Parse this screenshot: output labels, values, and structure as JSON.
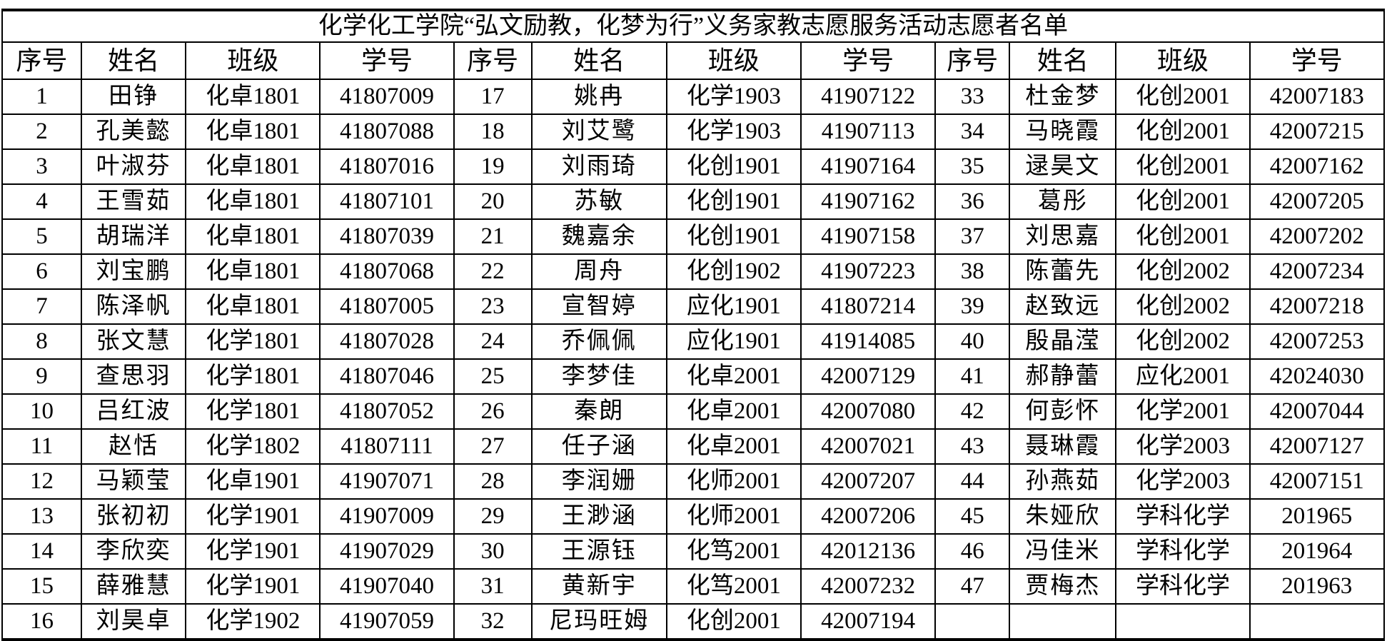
{
  "title": "化学化工学院“弘文励教，化梦为行”义务家教志愿服务活动志愿者名单",
  "headers": [
    "序号",
    "姓名",
    "班级",
    "学号"
  ],
  "volunteers": [
    {
      "no": "1",
      "name": "田铮",
      "class": "化卓1801",
      "id": "41807009"
    },
    {
      "no": "2",
      "name": "孔美懿",
      "class": "化卓1801",
      "id": "41807088"
    },
    {
      "no": "3",
      "name": "叶淑芬",
      "class": "化卓1801",
      "id": "41807016"
    },
    {
      "no": "4",
      "name": "王雪茹",
      "class": "化卓1801",
      "id": "41807101"
    },
    {
      "no": "5",
      "name": "胡瑞洋",
      "class": "化卓1801",
      "id": "41807039"
    },
    {
      "no": "6",
      "name": "刘宝鹏",
      "class": "化卓1801",
      "id": "41807068"
    },
    {
      "no": "7",
      "name": "陈泽帆",
      "class": "化卓1801",
      "id": "41807005"
    },
    {
      "no": "8",
      "name": "张文慧",
      "class": "化学1801",
      "id": "41807028"
    },
    {
      "no": "9",
      "name": "查思羽",
      "class": "化学1801",
      "id": "41807046"
    },
    {
      "no": "10",
      "name": "吕红波",
      "class": "化学1801",
      "id": "41807052"
    },
    {
      "no": "11",
      "name": "赵恬",
      "class": "化学1802",
      "id": "41807111"
    },
    {
      "no": "12",
      "name": "马颖莹",
      "class": "化卓1901",
      "id": "41907071"
    },
    {
      "no": "13",
      "name": "张初初",
      "class": "化学1901",
      "id": "41907009"
    },
    {
      "no": "14",
      "name": "李欣奕",
      "class": "化学1901",
      "id": "41907029"
    },
    {
      "no": "15",
      "name": "薛雅慧",
      "class": "化学1901",
      "id": "41907040"
    },
    {
      "no": "16",
      "name": "刘昊卓",
      "class": "化学1902",
      "id": "41907059"
    },
    {
      "no": "17",
      "name": "姚冉",
      "class": "化学1903",
      "id": "41907122"
    },
    {
      "no": "18",
      "name": "刘艾鹭",
      "class": "化学1903",
      "id": "41907113"
    },
    {
      "no": "19",
      "name": "刘雨琦",
      "class": "化创1901",
      "id": "41907164"
    },
    {
      "no": "20",
      "name": "苏敏",
      "class": "化创1901",
      "id": "41907162"
    },
    {
      "no": "21",
      "name": "魏嘉余",
      "class": "化创1901",
      "id": "41907158"
    },
    {
      "no": "22",
      "name": "周舟",
      "class": "化创1902",
      "id": "41907223"
    },
    {
      "no": "23",
      "name": "宣智婷",
      "class": "应化1901",
      "id": "41807214"
    },
    {
      "no": "24",
      "name": "乔佩佩",
      "class": "应化1901",
      "id": "41914085"
    },
    {
      "no": "25",
      "name": "李梦佳",
      "class": "化卓2001",
      "id": "42007129"
    },
    {
      "no": "26",
      "name": "秦朗",
      "class": "化卓2001",
      "id": "42007080"
    },
    {
      "no": "27",
      "name": "任子涵",
      "class": "化卓2001",
      "id": "42007021"
    },
    {
      "no": "28",
      "name": "李润姗",
      "class": "化师2001",
      "id": "42007207"
    },
    {
      "no": "29",
      "name": "王渺涵",
      "class": "化师2001",
      "id": "42007206"
    },
    {
      "no": "30",
      "name": "王源钰",
      "class": "化笃2001",
      "id": "42012136"
    },
    {
      "no": "31",
      "name": "黄新宇",
      "class": "化笃2001",
      "id": "42007232"
    },
    {
      "no": "32",
      "name": "尼玛旺姆",
      "class": "化创2001",
      "id": "42007194"
    },
    {
      "no": "33",
      "name": "杜金梦",
      "class": "化创2001",
      "id": "42007183"
    },
    {
      "no": "34",
      "name": "马晓霞",
      "class": "化创2001",
      "id": "42007215"
    },
    {
      "no": "35",
      "name": "逯昊文",
      "class": "化创2001",
      "id": "42007162"
    },
    {
      "no": "36",
      "name": "葛彤",
      "class": "化创2001",
      "id": "42007205"
    },
    {
      "no": "37",
      "name": "刘思嘉",
      "class": "化创2001",
      "id": "42007202"
    },
    {
      "no": "38",
      "name": "陈蕾先",
      "class": "化创2002",
      "id": "42007234"
    },
    {
      "no": "39",
      "name": "赵致远",
      "class": "化创2002",
      "id": "42007218"
    },
    {
      "no": "40",
      "name": "殷晶滢",
      "class": "化创2002",
      "id": "42007253"
    },
    {
      "no": "41",
      "name": "郝静蕾",
      "class": "应化2001",
      "id": "42024030"
    },
    {
      "no": "42",
      "name": "何彭怀",
      "class": "化学2001",
      "id": "42007044"
    },
    {
      "no": "43",
      "name": "聂琳霞",
      "class": "化学2003",
      "id": "42007127"
    },
    {
      "no": "44",
      "name": "孙燕茹",
      "class": "化学2003",
      "id": "42007151"
    },
    {
      "no": "45",
      "name": "朱娅欣",
      "class": "学科化学",
      "id": "201965"
    },
    {
      "no": "46",
      "name": "冯佳米",
      "class": "学科化学",
      "id": "201964"
    },
    {
      "no": "47",
      "name": "贾梅杰",
      "class": "学科化学",
      "id": "201963"
    }
  ]
}
